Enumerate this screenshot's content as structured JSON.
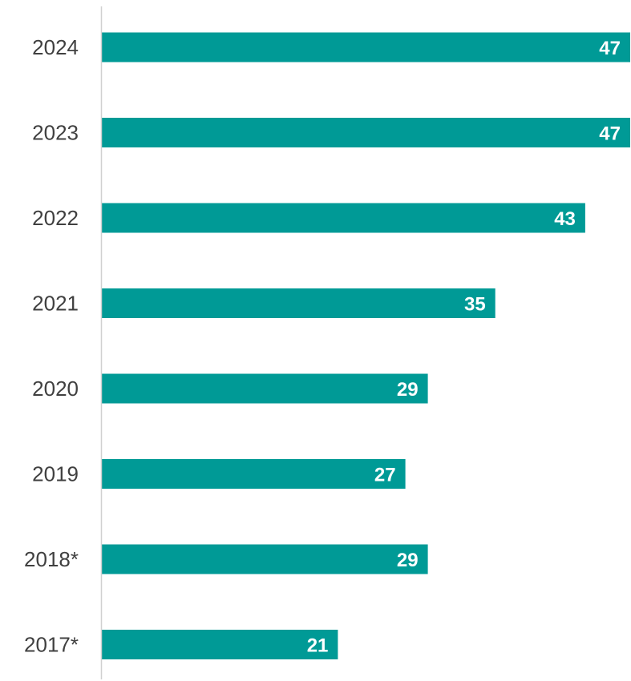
{
  "chart_data": {
    "type": "bar",
    "orientation": "horizontal",
    "categories": [
      "2024",
      "2023",
      "2022",
      "2021",
      "2020",
      "2019",
      "2018*",
      "2017*"
    ],
    "values": [
      47,
      47,
      43,
      35,
      29,
      27,
      29,
      21
    ],
    "title": "",
    "xlabel": "",
    "ylabel": "",
    "xlim": [
      0,
      47
    ],
    "grid": false,
    "legend": "none",
    "data_labels": true,
    "bar_color": "#009A96",
    "axis_color": "#D0D0D0",
    "category_label_color": "#404040",
    "value_label_color": "#FFFFFF"
  }
}
